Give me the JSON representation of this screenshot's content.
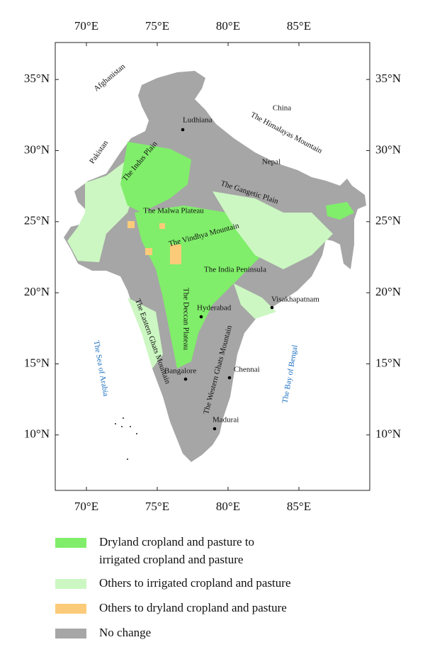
{
  "map_data": {
    "xlim": [
      67.8,
      90
    ],
    "ylim": [
      6.1,
      37.6
    ],
    "xticks": [
      {
        "value": 70,
        "label": "70°E"
      },
      {
        "value": 75,
        "label": "75°E"
      },
      {
        "value": 80,
        "label": "80°E"
      },
      {
        "value": 85,
        "label": "85°E"
      }
    ],
    "yticks": [
      {
        "value": 10,
        "label": "10°N"
      },
      {
        "value": 15,
        "label": "15°N"
      },
      {
        "value": 20,
        "label": "20°N"
      },
      {
        "value": 25,
        "label": "25°N"
      },
      {
        "value": 30,
        "label": "30°N"
      },
      {
        "value": 35,
        "label": "35°N"
      }
    ],
    "places": [
      "Afghanistan",
      "Pakistan",
      "China",
      "Nepal",
      "The Himalayas Mountain",
      "The Indus Plain",
      "The Gangetic Plain",
      "The Malwa Plateau",
      "The Vindhya Mountain",
      "The India Peninsula",
      "The Deccan Plateau",
      "The Eastern Ghats Mountain",
      "The Western Ghats Mountain",
      "The Sea of Arabia",
      "The Bay of Bengal"
    ],
    "cities": [
      "Ludhiana",
      "Hyderabad",
      "Visakhapatnam",
      "Bangalore",
      "Chennai",
      "Madurai"
    ],
    "legend": [
      {
        "lines": [
          "Dryland cropland and pasture to",
          "irrigated cropland and pasture"
        ],
        "color": "#80ee6a"
      },
      {
        "lines": [
          "Others to irrigated cropland and pasture"
        ],
        "color": "#ccf7c2"
      },
      {
        "lines": [
          "Others to dryland cropland and pasture"
        ],
        "color": "#fbcb7a"
      },
      {
        "lines": [
          "No change"
        ],
        "color": "#a6a6a6"
      }
    ]
  }
}
